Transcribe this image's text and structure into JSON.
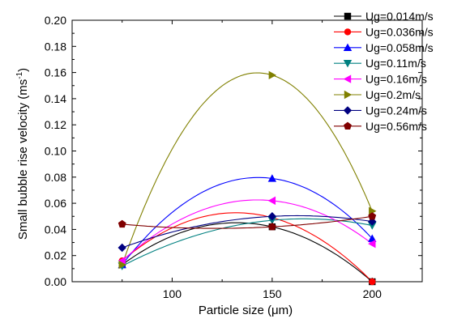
{
  "chart_data": {
    "type": "line",
    "xlabel": "Particle size (μm)",
    "ylabel": "Small bubble rise velocity (ms-1)",
    "xlim": [
      50,
      225
    ],
    "ylim": [
      0,
      0.2
    ],
    "xticks": [
      100,
      150,
      200
    ],
    "yticks": [
      0.0,
      0.02,
      0.04,
      0.06,
      0.08,
      0.1,
      0.12,
      0.14,
      0.16,
      0.18,
      0.2
    ],
    "ytick_labels": [
      "0.00",
      "0.02",
      "0.04",
      "0.06",
      "0.08",
      "0.10",
      "0.12",
      "0.14",
      "0.16",
      "0.18",
      "0.20"
    ],
    "xtick_labels": [
      "100",
      "150",
      "200"
    ],
    "x": [
      75,
      150,
      200
    ],
    "legend_position": "top-right",
    "grid": false,
    "series": [
      {
        "name": "Ug=0.014m/s",
        "values": [
          0.013,
          0.042,
          0.0
        ],
        "color": "#000000",
        "marker": "square"
      },
      {
        "name": "Ug=0.036m/s",
        "values": [
          0.016,
          0.049,
          0.0
        ],
        "color": "#ff0000",
        "marker": "circle"
      },
      {
        "name": "Ug=0.058m/s",
        "values": [
          0.013,
          0.079,
          0.033
        ],
        "color": "#0000ff",
        "marker": "triangle-up"
      },
      {
        "name": "Ug=0.11m/s",
        "values": [
          0.012,
          0.047,
          0.043
        ],
        "color": "#008080",
        "marker": "triangle-down"
      },
      {
        "name": "Ug=0.16m/s",
        "values": [
          0.016,
          0.062,
          0.029
        ],
        "color": "#ff00ff",
        "marker": "triangle-left"
      },
      {
        "name": "Ug=0.2m/s",
        "values": [
          0.013,
          0.158,
          0.054
        ],
        "color": "#808000",
        "marker": "triangle-right"
      },
      {
        "name": "Ug=0.24m/s",
        "values": [
          0.026,
          0.05,
          0.046
        ],
        "color": "#000080",
        "marker": "diamond"
      },
      {
        "name": "Ug=0.56m/s",
        "values": [
          0.044,
          0.042,
          0.05
        ],
        "color": "#800000",
        "marker": "pentagon"
      }
    ]
  }
}
